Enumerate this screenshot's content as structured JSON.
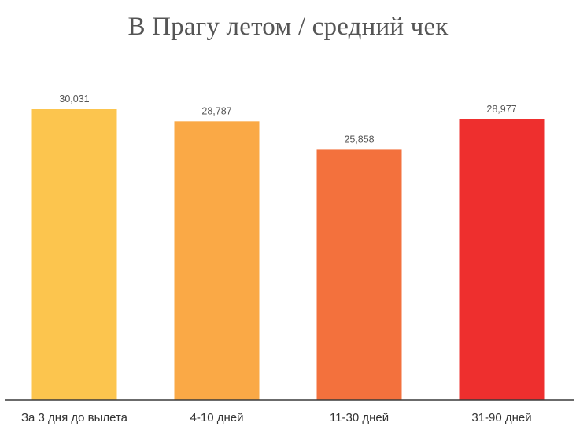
{
  "chart_data": {
    "type": "bar",
    "title": "В Прагу летом / средний чек",
    "xlabel": "",
    "ylabel": "",
    "categories": [
      "За 3 дня до вылета",
      "4-10 дней",
      "11-30 дней",
      "31-90 дней"
    ],
    "values": [
      30031,
      28787,
      25858,
      28977
    ],
    "value_labels": [
      "30,031",
      "28,787",
      "25,858",
      "28,977"
    ],
    "colors": [
      "#FCC54E",
      "#FAA946",
      "#F3713D",
      "#EE2F2E"
    ],
    "ylim": [
      0,
      30031
    ],
    "grid": false,
    "legend": "none"
  }
}
